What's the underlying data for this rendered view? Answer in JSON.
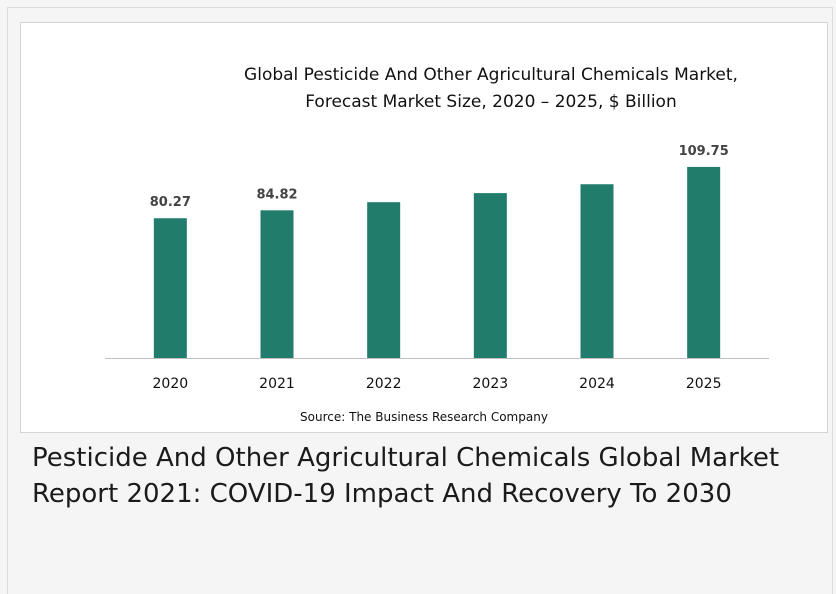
{
  "chart_data": {
    "type": "bar",
    "title": [
      "Global Pesticide And Other Agricultural Chemicals Market,",
      "Forecast Market Size, 2020 – 2025, $ Billion"
    ],
    "categories": [
      "2020",
      "2021",
      "2022",
      "2023",
      "2024",
      "2025"
    ],
    "values": [
      80.27,
      84.82,
      89.5,
      94.7,
      99.8,
      109.75
    ],
    "data_labels": [
      "80.27",
      "84.82",
      "",
      "",
      "",
      "109.75"
    ],
    "ylim": [
      0,
      112
    ],
    "grid": false,
    "legend": "none",
    "bar_color": "#217c6c",
    "source": "Source: The Business Research Company"
  },
  "caption": "Pesticide And Other Agricultural Chemicals Global Market Report 2021: COVID-19 Impact And Recovery To 2030"
}
